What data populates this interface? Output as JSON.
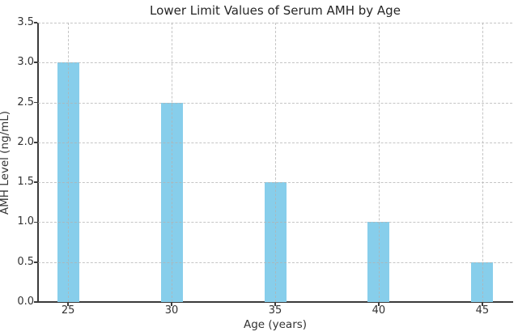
{
  "chart_data": {
    "type": "bar",
    "title": "Lower Limit Values of Serum AMH by Age",
    "xlabel": "Age (years)",
    "ylabel": "AMH Level (ng/mL)",
    "categories": [
      25,
      30,
      35,
      40,
      45
    ],
    "xtick_labels": [
      "25",
      "30",
      "35",
      "40",
      "45"
    ],
    "values": [
      3.0,
      2.5,
      1.5,
      1.0,
      0.5
    ],
    "xlim": [
      23.55,
      46.45
    ],
    "ylim": [
      0,
      3.5
    ],
    "yticks": [
      0.0,
      0.5,
      1.0,
      1.5,
      2.0,
      2.5,
      3.0,
      3.5
    ],
    "ytick_labels": [
      "0.0",
      "0.5",
      "1.0",
      "1.5",
      "2.0",
      "2.5",
      "3.0",
      "3.5"
    ],
    "bar_color": "#87CEEB",
    "grid": true,
    "grid_style": "dashed",
    "grid_color": "#cccccc",
    "grid_above_bars": true,
    "axis_color": "#3b3b3b",
    "tick_text_color": "#333333",
    "title_color": "#262626",
    "background_color": "#ffffff",
    "legend_position": "none"
  }
}
